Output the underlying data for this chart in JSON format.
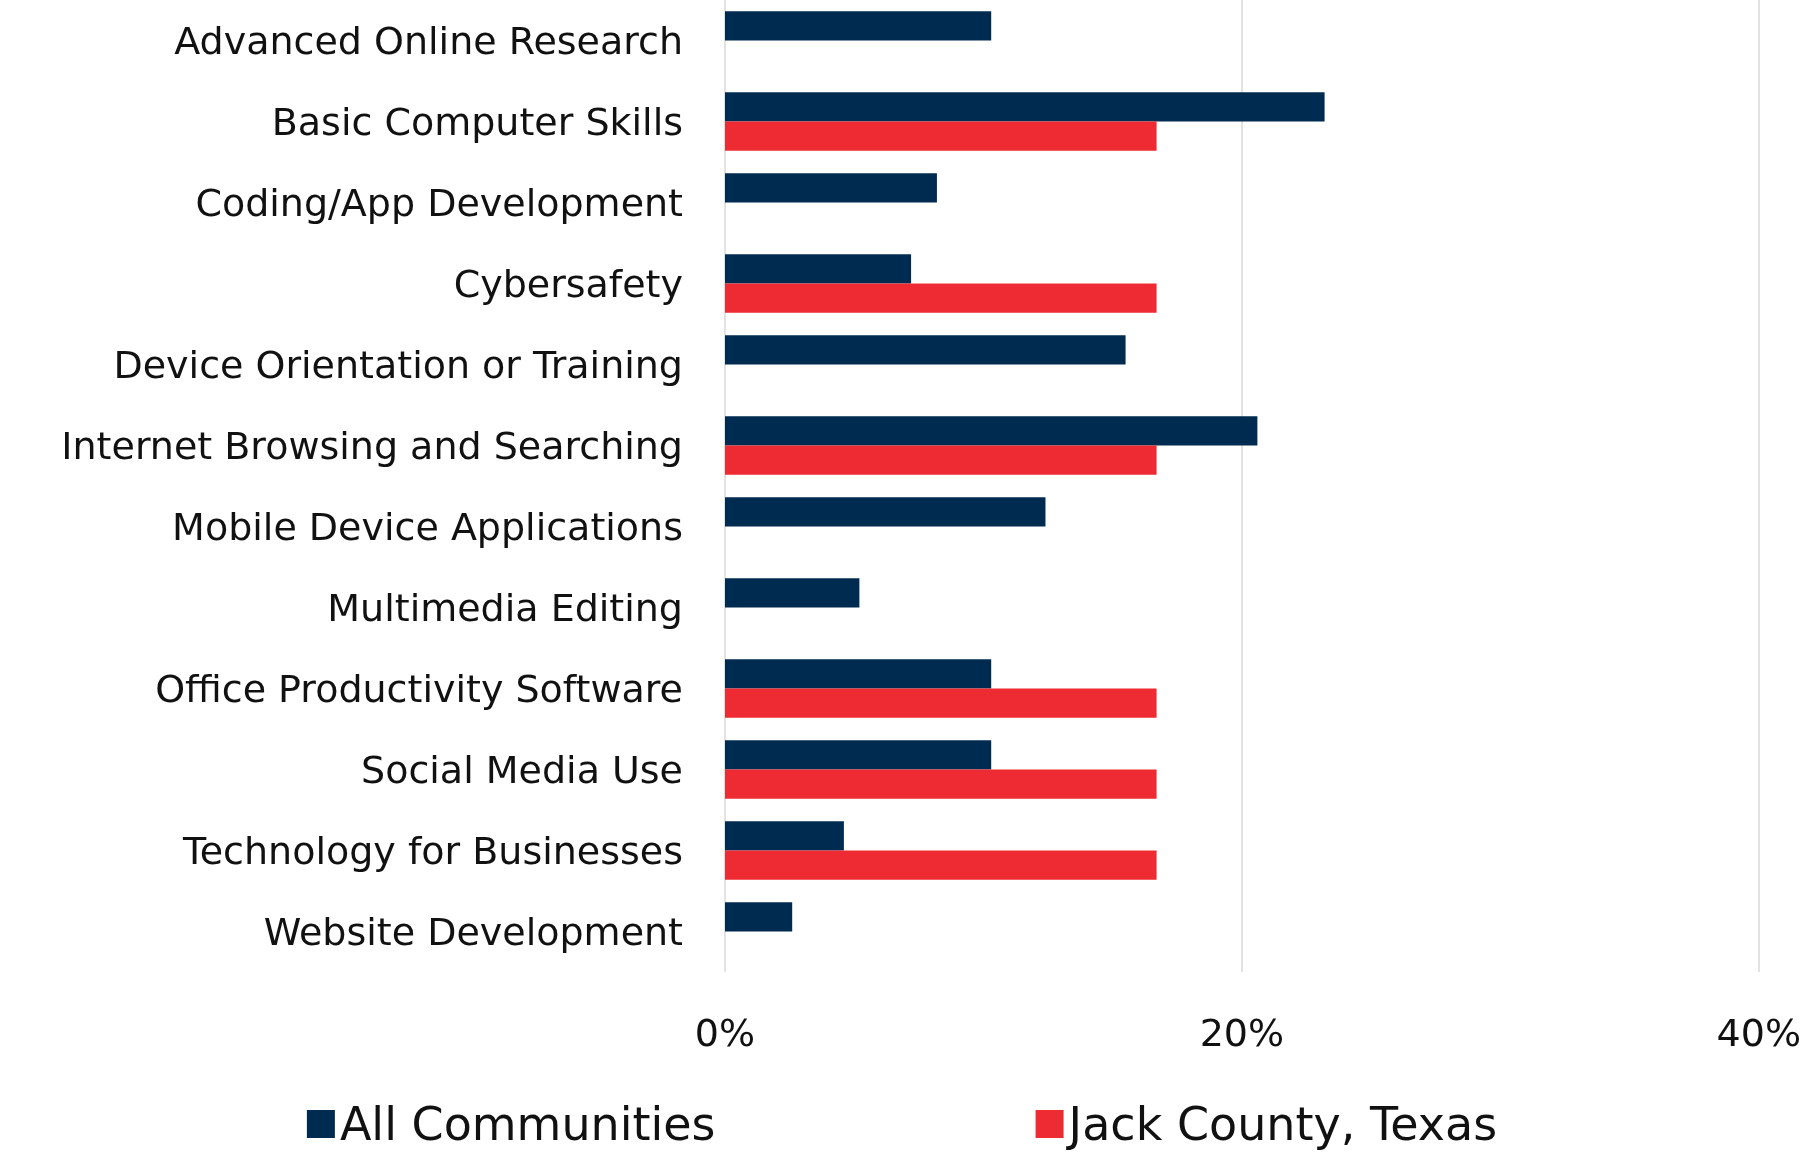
{
  "chart_data": {
    "type": "bar",
    "orientation": "horizontal",
    "categories": [
      "Advanced Online Research",
      "Basic Computer Skills",
      "Coding/App Development",
      "Cybersafety",
      "Device Orientation or Training",
      "Internet Browsing and Searching",
      "Mobile Device Applications",
      "Multimedia Editing",
      "Office Productivity Software",
      "Social Media Use",
      "Technology for Businesses",
      "Website Development"
    ],
    "series": [
      {
        "name": "All Communities",
        "color": "#002b50",
        "values": [
          10.3,
          23.2,
          8.2,
          7.2,
          15.5,
          20.6,
          12.4,
          5.2,
          10.3,
          10.3,
          4.6,
          2.6
        ]
      },
      {
        "name": "Jack County, Texas",
        "color": "#ee2a32",
        "values": [
          null,
          16.7,
          null,
          16.7,
          null,
          16.7,
          null,
          null,
          16.7,
          16.7,
          16.7,
          null
        ]
      }
    ],
    "xlim": [
      0,
      40
    ],
    "xticks": [
      {
        "value": 0,
        "label": "0%"
      },
      {
        "value": 20,
        "label": "20%"
      },
      {
        "value": 40,
        "label": "40%"
      }
    ],
    "grid": "x",
    "legend": "bottom"
  }
}
